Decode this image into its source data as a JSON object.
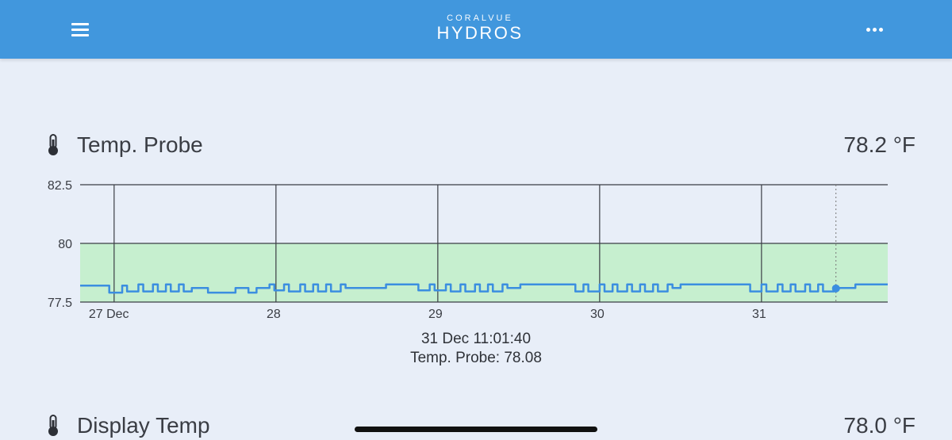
{
  "app": {
    "brand": "CORALVUE",
    "product": "HYDROS",
    "icons": {
      "menu": "hamburger-icon",
      "more": "more-dots-icon",
      "sensor": "thermometer-icon"
    }
  },
  "probes": [
    {
      "name": "Temp. Probe",
      "value": "78.2 °F"
    },
    {
      "name": "Display Temp",
      "value": "78.0 °F"
    }
  ],
  "tooltip": {
    "time": "31 Dec 11:01:40",
    "reading": "Temp. Probe: 78.08"
  },
  "colors": {
    "header": "#4197dd",
    "background": "#e8eef8",
    "series": "#3b8ee0",
    "range_band": "#c6efcf"
  },
  "chart_data": {
    "type": "line",
    "title": "",
    "xlabel": "",
    "ylabel": "",
    "y_ticks": [
      "82.5",
      "80",
      "77.5"
    ],
    "ylim": [
      77.5,
      82.5
    ],
    "x_ticks": [
      "27 Dec",
      "28",
      "29",
      "30",
      "31"
    ],
    "xlim": [
      26.79,
      31.78
    ],
    "target_band": [
      77.5,
      80
    ],
    "series": [
      {
        "x": [
          26.79,
          26.95,
          26.97,
          27.05,
          27.08,
          27.15,
          27.18,
          27.24,
          27.27,
          27.32,
          27.35,
          27.4,
          27.43,
          27.48,
          27.55,
          27.58,
          27.72,
          27.75,
          27.8,
          27.83,
          27.88,
          27.91,
          27.96,
          27.99,
          28.05,
          28.08,
          28.15,
          28.18,
          28.23,
          28.26,
          28.31,
          28.34,
          28.4,
          28.43,
          28.48,
          28.5,
          28.68,
          28.72,
          28.85,
          28.88,
          28.95,
          28.98,
          29.05,
          29.08,
          29.14,
          29.17,
          29.23,
          29.26,
          29.31,
          29.34,
          29.4,
          29.43,
          29.48,
          29.51,
          29.6,
          29.63,
          29.8,
          29.85,
          29.9,
          29.93,
          30.0,
          30.03,
          30.08,
          30.11,
          30.17,
          30.2,
          30.25,
          30.28,
          30.33,
          30.36,
          30.42,
          30.45,
          30.5,
          30.53,
          30.9,
          30.93,
          31.0,
          31.03,
          31.1,
          31.13,
          31.18,
          31.21,
          31.27,
          31.3,
          31.35,
          31.38,
          31.45,
          31.48,
          31.55,
          31.58,
          31.78
        ],
        "y": [
          78.2,
          78.2,
          77.9,
          78.2,
          77.95,
          78.25,
          77.95,
          78.25,
          77.95,
          78.25,
          77.95,
          78.25,
          77.95,
          78.1,
          78.1,
          77.9,
          77.9,
          78.1,
          78.1,
          77.9,
          78.1,
          78.1,
          78.25,
          78.0,
          78.25,
          77.95,
          78.25,
          77.95,
          78.25,
          77.95,
          78.25,
          77.95,
          78.25,
          78.1,
          78.1,
          78.1,
          78.25,
          78.25,
          78.25,
          78.0,
          78.25,
          78.0,
          78.25,
          77.95,
          78.25,
          77.95,
          78.25,
          77.95,
          78.25,
          77.95,
          78.25,
          78.1,
          78.1,
          78.25,
          78.25,
          78.25,
          78.25,
          77.95,
          78.25,
          77.95,
          78.25,
          77.95,
          78.25,
          77.95,
          78.25,
          77.95,
          78.25,
          77.95,
          78.25,
          77.95,
          78.25,
          78.1,
          78.25,
          78.25,
          78.25,
          77.95,
          78.25,
          77.95,
          78.25,
          77.95,
          78.25,
          77.95,
          78.25,
          77.95,
          78.25,
          77.95,
          78.08,
          78.1,
          78.1,
          78.25,
          78.25
        ]
      }
    ],
    "highlight": {
      "x": 31.46,
      "y": 78.08
    },
    "grid": true
  }
}
